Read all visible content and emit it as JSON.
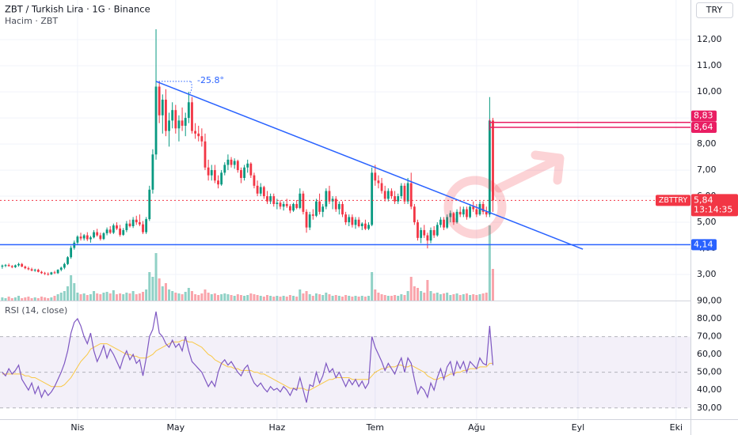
{
  "chart_data": {
    "type": "candlestick",
    "title": "ZBT / Turkish Lira · 1G · Binance",
    "currency_button": "TRY",
    "up_color": "#089981",
    "down_color": "#f23645",
    "grid": true,
    "xlim": [
      -0.7,
      210.4
    ],
    "xticks": [
      {
        "value": 23,
        "label": "Nis"
      },
      {
        "value": 53,
        "label": "May"
      },
      {
        "value": 84,
        "label": "Haz"
      },
      {
        "value": 114,
        "label": "Tem"
      },
      {
        "value": 145,
        "label": "Ağu"
      },
      {
        "value": 176,
        "label": "Eyl"
      },
      {
        "value": 206,
        "label": "Eki"
      }
    ],
    "ylim": [
      2,
      13.52
    ],
    "yticks": [
      {
        "value": 3,
        "label": "3,00"
      },
      {
        "value": 4,
        "label": "4,00"
      },
      {
        "value": 5,
        "label": "5,00"
      },
      {
        "value": 6,
        "label": "6,00"
      },
      {
        "value": 7,
        "label": "7,00"
      },
      {
        "value": 8,
        "label": "8,00"
      },
      {
        "value": 9,
        "label": "9,00"
      },
      {
        "value": 10,
        "label": "10,00"
      },
      {
        "value": 11,
        "label": "11,00"
      },
      {
        "value": 12,
        "label": "12,00"
      }
    ],
    "ohlc": [
      [
        3.3,
        3.38,
        3.22,
        3.34
      ],
      [
        3.34,
        3.4,
        3.28,
        3.36
      ],
      [
        3.36,
        3.42,
        3.3,
        3.32
      ],
      [
        3.32,
        3.36,
        3.24,
        3.28
      ],
      [
        3.28,
        3.38,
        3.25,
        3.35
      ],
      [
        3.35,
        3.45,
        3.3,
        3.4
      ],
      [
        3.4,
        3.44,
        3.28,
        3.3
      ],
      [
        3.3,
        3.34,
        3.2,
        3.24
      ],
      [
        3.24,
        3.3,
        3.16,
        3.2
      ],
      [
        3.2,
        3.26,
        3.12,
        3.15
      ],
      [
        3.15,
        3.22,
        3.1,
        3.18
      ],
      [
        3.18,
        3.22,
        3.08,
        3.1
      ],
      [
        3.1,
        3.14,
        3.02,
        3.05
      ],
      [
        3.05,
        3.1,
        2.98,
        3.02
      ],
      [
        3.02,
        3.08,
        2.96,
        3.0
      ],
      [
        3.0,
        3.1,
        2.98,
        3.08
      ],
      [
        3.08,
        3.14,
        3.02,
        3.05
      ],
      [
        3.05,
        3.2,
        3.02,
        3.18
      ],
      [
        3.18,
        3.3,
        3.12,
        3.26
      ],
      [
        3.26,
        3.45,
        3.2,
        3.4
      ],
      [
        3.4,
        3.7,
        3.36,
        3.66
      ],
      [
        3.66,
        4.1,
        3.6,
        4.02
      ],
      [
        4.02,
        4.3,
        3.95,
        4.22
      ],
      [
        4.22,
        4.5,
        4.15,
        4.45
      ],
      [
        4.45,
        4.6,
        4.3,
        4.38
      ],
      [
        4.38,
        4.55,
        4.3,
        4.5
      ],
      [
        4.5,
        4.62,
        4.28,
        4.35
      ],
      [
        4.35,
        4.48,
        4.22,
        4.42
      ],
      [
        4.42,
        4.7,
        4.38,
        4.62
      ],
      [
        4.62,
        4.75,
        4.45,
        4.5
      ],
      [
        4.5,
        4.6,
        4.3,
        4.36
      ],
      [
        4.36,
        4.62,
        4.32,
        4.58
      ],
      [
        4.58,
        4.8,
        4.5,
        4.72
      ],
      [
        4.72,
        4.85,
        4.55,
        4.6
      ],
      [
        4.6,
        4.95,
        4.55,
        4.88
      ],
      [
        4.88,
        5.0,
        4.7,
        4.76
      ],
      [
        4.76,
        4.9,
        4.45,
        4.52
      ],
      [
        4.52,
        4.78,
        4.48,
        4.7
      ],
      [
        4.7,
        5.05,
        4.62,
        4.95
      ],
      [
        4.95,
        5.1,
        4.8,
        4.85
      ],
      [
        4.85,
        5.2,
        4.78,
        5.1
      ],
      [
        5.1,
        5.25,
        4.9,
        5.0
      ],
      [
        5.0,
        5.3,
        4.85,
        4.92
      ],
      [
        4.92,
        5.05,
        4.55,
        4.62
      ],
      [
        4.62,
        5.2,
        4.55,
        5.12
      ],
      [
        5.12,
        6.4,
        5.05,
        6.25
      ],
      [
        6.25,
        7.8,
        6.1,
        7.6
      ],
      [
        7.6,
        12.4,
        7.4,
        10.2
      ],
      [
        10.2,
        10.4,
        8.8,
        9.1
      ],
      [
        9.1,
        9.9,
        8.4,
        9.7
      ],
      [
        9.7,
        10.1,
        8.3,
        8.5
      ],
      [
        8.5,
        9.2,
        7.9,
        8.9
      ],
      [
        8.9,
        9.6,
        8.6,
        9.3
      ],
      [
        9.3,
        9.5,
        8.4,
        8.6
      ],
      [
        8.6,
        9.1,
        8.1,
        8.9
      ],
      [
        8.9,
        9.4,
        8.5,
        8.7
      ],
      [
        8.7,
        9.2,
        8.3,
        9.0
      ],
      [
        9.0,
        10.0,
        8.8,
        9.6
      ],
      [
        9.6,
        9.8,
        8.4,
        8.5
      ],
      [
        8.5,
        8.8,
        8.2,
        8.4
      ],
      [
        8.4,
        8.7,
        8.1,
        8.3
      ],
      [
        8.3,
        8.6,
        7.9,
        8.1
      ],
      [
        8.1,
        8.4,
        7.0,
        7.1
      ],
      [
        7.1,
        7.4,
        6.6,
        6.8
      ],
      [
        6.8,
        7.2,
        6.6,
        7.0
      ],
      [
        7.0,
        7.2,
        6.5,
        6.6
      ],
      [
        6.6,
        6.8,
        6.3,
        6.45
      ],
      [
        6.45,
        7.0,
        6.4,
        6.9
      ],
      [
        6.9,
        7.3,
        6.8,
        7.2
      ],
      [
        7.2,
        7.6,
        7.0,
        7.4
      ],
      [
        7.4,
        7.5,
        7.1,
        7.2
      ],
      [
        7.2,
        7.45,
        7.05,
        7.35
      ],
      [
        7.35,
        7.4,
        6.9,
        7.0
      ],
      [
        7.0,
        7.1,
        6.5,
        6.7
      ],
      [
        6.7,
        7.2,
        6.6,
        7.1
      ],
      [
        7.1,
        7.4,
        6.9,
        7.25
      ],
      [
        7.25,
        7.3,
        6.7,
        6.8
      ],
      [
        6.8,
        6.9,
        6.3,
        6.4
      ],
      [
        6.4,
        6.6,
        6.0,
        6.1
      ],
      [
        6.1,
        6.5,
        6.0,
        6.35
      ],
      [
        6.35,
        6.4,
        5.9,
        6.0
      ],
      [
        6.0,
        6.2,
        5.7,
        5.8
      ],
      [
        5.8,
        6.1,
        5.7,
        6.0
      ],
      [
        6.0,
        6.1,
        5.6,
        5.7
      ],
      [
        5.7,
        5.9,
        5.5,
        5.75
      ],
      [
        5.75,
        5.85,
        5.5,
        5.6
      ],
      [
        5.6,
        5.8,
        5.45,
        5.7
      ],
      [
        5.7,
        5.9,
        5.55,
        5.62
      ],
      [
        5.62,
        5.7,
        5.35,
        5.45
      ],
      [
        5.45,
        5.75,
        5.4,
        5.7
      ],
      [
        5.7,
        5.85,
        5.5,
        5.55
      ],
      [
        5.55,
        6.3,
        5.5,
        6.1
      ],
      [
        6.1,
        6.2,
        5.3,
        5.4
      ],
      [
        5.4,
        5.5,
        4.6,
        4.8
      ],
      [
        4.8,
        5.4,
        4.7,
        5.3
      ],
      [
        5.3,
        5.5,
        5.1,
        5.25
      ],
      [
        5.25,
        5.9,
        5.2,
        5.8
      ],
      [
        5.8,
        6.1,
        5.3,
        5.4
      ],
      [
        5.4,
        5.7,
        5.2,
        5.6
      ],
      [
        5.6,
        6.3,
        5.5,
        6.2
      ],
      [
        6.2,
        6.4,
        5.7,
        5.8
      ],
      [
        5.8,
        6.0,
        5.5,
        5.9
      ],
      [
        5.9,
        6.0,
        5.4,
        5.5
      ],
      [
        5.5,
        5.8,
        5.3,
        5.7
      ],
      [
        5.7,
        5.8,
        5.2,
        5.3
      ],
      [
        5.3,
        5.4,
        4.9,
        5.0
      ],
      [
        5.0,
        5.3,
        4.85,
        5.2
      ],
      [
        5.2,
        5.3,
        4.8,
        4.9
      ],
      [
        4.9,
        5.2,
        4.75,
        5.1
      ],
      [
        5.1,
        5.2,
        4.8,
        4.85
      ],
      [
        4.85,
        5.0,
        4.7,
        4.95
      ],
      [
        4.95,
        5.1,
        4.7,
        4.75
      ],
      [
        4.75,
        5.0,
        4.7,
        4.9
      ],
      [
        4.9,
        7.1,
        4.85,
        6.9
      ],
      [
        6.9,
        7.2,
        6.4,
        6.6
      ],
      [
        6.6,
        6.8,
        6.3,
        6.5
      ],
      [
        6.5,
        6.7,
        6.1,
        6.2
      ],
      [
        6.2,
        6.4,
        5.8,
        5.9
      ],
      [
        5.9,
        6.3,
        5.8,
        6.2
      ],
      [
        6.2,
        6.3,
        5.9,
        6.0
      ],
      [
        6.0,
        6.2,
        5.7,
        5.8
      ],
      [
        5.8,
        6.1,
        5.7,
        6.0
      ],
      [
        6.0,
        6.5,
        5.9,
        6.4
      ],
      [
        6.4,
        6.5,
        5.7,
        5.8
      ],
      [
        5.8,
        6.7,
        5.7,
        6.5
      ],
      [
        6.5,
        6.9,
        5.5,
        5.6
      ],
      [
        5.6,
        5.7,
        4.9,
        5.0
      ],
      [
        5.0,
        5.1,
        4.3,
        4.4
      ],
      [
        4.4,
        4.8,
        4.2,
        4.7
      ],
      [
        4.7,
        4.9,
        4.4,
        4.5
      ],
      [
        4.5,
        4.6,
        4.0,
        4.3
      ],
      [
        4.3,
        4.8,
        4.2,
        4.7
      ],
      [
        4.7,
        4.85,
        4.4,
        4.5
      ],
      [
        4.5,
        5.0,
        4.45,
        4.9
      ],
      [
        4.9,
        5.2,
        4.8,
        5.1
      ],
      [
        5.1,
        5.2,
        4.7,
        4.8
      ],
      [
        4.8,
        5.3,
        4.75,
        5.2
      ],
      [
        5.2,
        5.45,
        5.0,
        5.35
      ],
      [
        5.35,
        5.4,
        4.9,
        5.0
      ],
      [
        5.0,
        5.5,
        4.95,
        5.4
      ],
      [
        5.4,
        5.6,
        5.2,
        5.3
      ],
      [
        5.3,
        5.6,
        5.2,
        5.5
      ],
      [
        5.5,
        5.6,
        5.1,
        5.2
      ],
      [
        5.2,
        5.7,
        5.15,
        5.6
      ],
      [
        5.6,
        5.8,
        5.4,
        5.5
      ],
      [
        5.5,
        5.7,
        5.2,
        5.3
      ],
      [
        5.3,
        5.8,
        5.25,
        5.7
      ],
      [
        5.7,
        5.8,
        5.3,
        5.4
      ],
      [
        5.4,
        5.6,
        5.2,
        5.3
      ],
      [
        5.3,
        9.8,
        5.2,
        8.9
      ],
      [
        8.9,
        9.0,
        5.4,
        5.84
      ]
    ],
    "volume": {
      "label": "Hacim · ZBT",
      "values": [
        4,
        3,
        5,
        3,
        4,
        6,
        3,
        4,
        5,
        3,
        4,
        3,
        5,
        4,
        3,
        4,
        6,
        8,
        10,
        12,
        18,
        32,
        22,
        10,
        8,
        9,
        7,
        8,
        12,
        9,
        8,
        10,
        11,
        9,
        13,
        8,
        9,
        8,
        10,
        9,
        12,
        8,
        9,
        11,
        14,
        36,
        30,
        60,
        28,
        18,
        22,
        14,
        12,
        10,
        9,
        8,
        11,
        16,
        12,
        8,
        7,
        9,
        14,
        10,
        8,
        9,
        7,
        8,
        9,
        8,
        7,
        6,
        8,
        7,
        6,
        7,
        9,
        8,
        7,
        6,
        5,
        7,
        6,
        5,
        6,
        5,
        6,
        5,
        7,
        6,
        5,
        14,
        9,
        12,
        8,
        6,
        9,
        8,
        7,
        10,
        8,
        6,
        7,
        6,
        5,
        7,
        6,
        5,
        6,
        5,
        6,
        5,
        6,
        36,
        14,
        10,
        8,
        7,
        6,
        6,
        7,
        6,
        8,
        7,
        12,
        30,
        18,
        16,
        12,
        10,
        26,
        12,
        9,
        10,
        8,
        9,
        10,
        7,
        8,
        9,
        7,
        8,
        9,
        7,
        8,
        7,
        8,
        9,
        10,
        95,
        40
      ]
    },
    "trendline": {
      "x": [
        47,
        177.5
      ],
      "y": [
        10.4,
        3.97
      ],
      "color": "#2962ff",
      "label": "-25.8°"
    },
    "horizontal_lines": [
      {
        "value": 8.83,
        "label": "8,83",
        "color": "#e91e63",
        "start": 149
      },
      {
        "value": 8.64,
        "label": "8,64",
        "color": "#e91e63",
        "start": 149
      },
      {
        "value": 4.14,
        "label": "4,14",
        "color": "#2962ff",
        "start": -0.7
      }
    ],
    "last_price": {
      "symbol": "ZBTTRY",
      "value": 5.84,
      "label": "5,84",
      "countdown": "13:14:35",
      "color": "#f23645"
    },
    "rsi": {
      "label": "RSI (14, close)",
      "color": "#7e57c2",
      "ylim": [
        23.7,
        90.2
      ],
      "yticks": [
        {
          "value": 30,
          "label": "30,00"
        },
        {
          "value": 40,
          "label": "40,00"
        },
        {
          "value": 50,
          "label": "50,00"
        },
        {
          "value": 60,
          "label": "60,00"
        },
        {
          "value": 70,
          "label": "70,00"
        },
        {
          "value": 80,
          "label": "80,00"
        },
        {
          "value": 90,
          "label": "90,00"
        }
      ],
      "levels": [
        70,
        50,
        30
      ],
      "values": [
        50,
        48,
        52,
        49,
        51,
        54,
        46,
        43,
        40,
        44,
        38,
        42,
        36,
        40,
        37,
        39,
        42,
        46,
        50,
        55,
        62,
        72,
        78,
        80,
        76,
        70,
        66,
        72,
        62,
        56,
        60,
        65,
        58,
        63,
        60,
        56,
        52,
        58,
        62,
        57,
        60,
        55,
        57,
        48,
        58,
        70,
        74,
        84,
        72,
        70,
        66,
        64,
        68,
        64,
        66,
        62,
        70,
        62,
        56,
        54,
        52,
        50,
        46,
        42,
        45,
        42,
        50,
        55,
        57,
        54,
        56,
        53,
        50,
        48,
        52,
        54,
        48,
        44,
        42,
        44,
        41,
        39,
        42,
        40,
        41,
        39,
        42,
        40,
        37,
        41,
        40,
        47,
        40,
        33,
        43,
        42,
        50,
        44,
        48,
        55,
        50,
        52,
        47,
        50,
        46,
        42,
        46,
        43,
        46,
        42,
        45,
        41,
        44,
        70,
        64,
        60,
        56,
        51,
        55,
        52,
        49,
        54,
        58,
        50,
        58,
        55,
        46,
        38,
        42,
        40,
        36,
        44,
        40,
        47,
        52,
        46,
        53,
        56,
        48,
        56,
        52,
        56,
        50,
        56,
        54,
        52,
        58,
        55,
        54,
        76,
        54
      ],
      "ma": {
        "color": "#f9c846",
        "values": [
          49,
          49,
          49,
          49,
          49,
          49,
          49,
          48,
          48,
          47,
          47,
          46,
          45,
          44,
          43,
          42,
          42,
          42,
          42,
          43,
          45,
          47,
          50,
          53,
          56,
          58,
          60,
          63,
          64,
          65,
          66,
          66,
          66,
          65,
          64,
          63,
          62,
          61,
          60,
          60,
          59,
          59,
          58,
          58,
          58,
          59,
          60,
          62,
          63,
          64,
          65,
          66,
          67,
          67,
          67,
          68,
          68,
          67,
          67,
          66,
          65,
          64,
          62,
          60,
          59,
          57,
          56,
          55,
          54,
          53,
          53,
          52,
          52,
          51,
          51,
          51,
          51,
          50,
          50,
          49,
          49,
          48,
          47,
          46,
          45,
          44,
          43,
          42,
          41,
          41,
          41,
          41,
          41,
          40,
          40,
          41,
          42,
          43,
          44,
          45,
          46,
          46,
          47,
          47,
          47,
          47,
          47,
          46,
          46,
          46,
          46,
          46,
          46,
          48,
          50,
          51,
          52,
          52,
          53,
          53,
          53,
          54,
          54,
          53,
          53,
          54,
          53,
          52,
          51,
          50,
          48,
          47,
          46,
          46,
          47,
          47,
          48,
          49,
          49,
          50,
          50,
          51,
          51,
          52,
          52,
          52,
          53,
          53,
          53,
          55,
          55
        ]
      }
    }
  }
}
